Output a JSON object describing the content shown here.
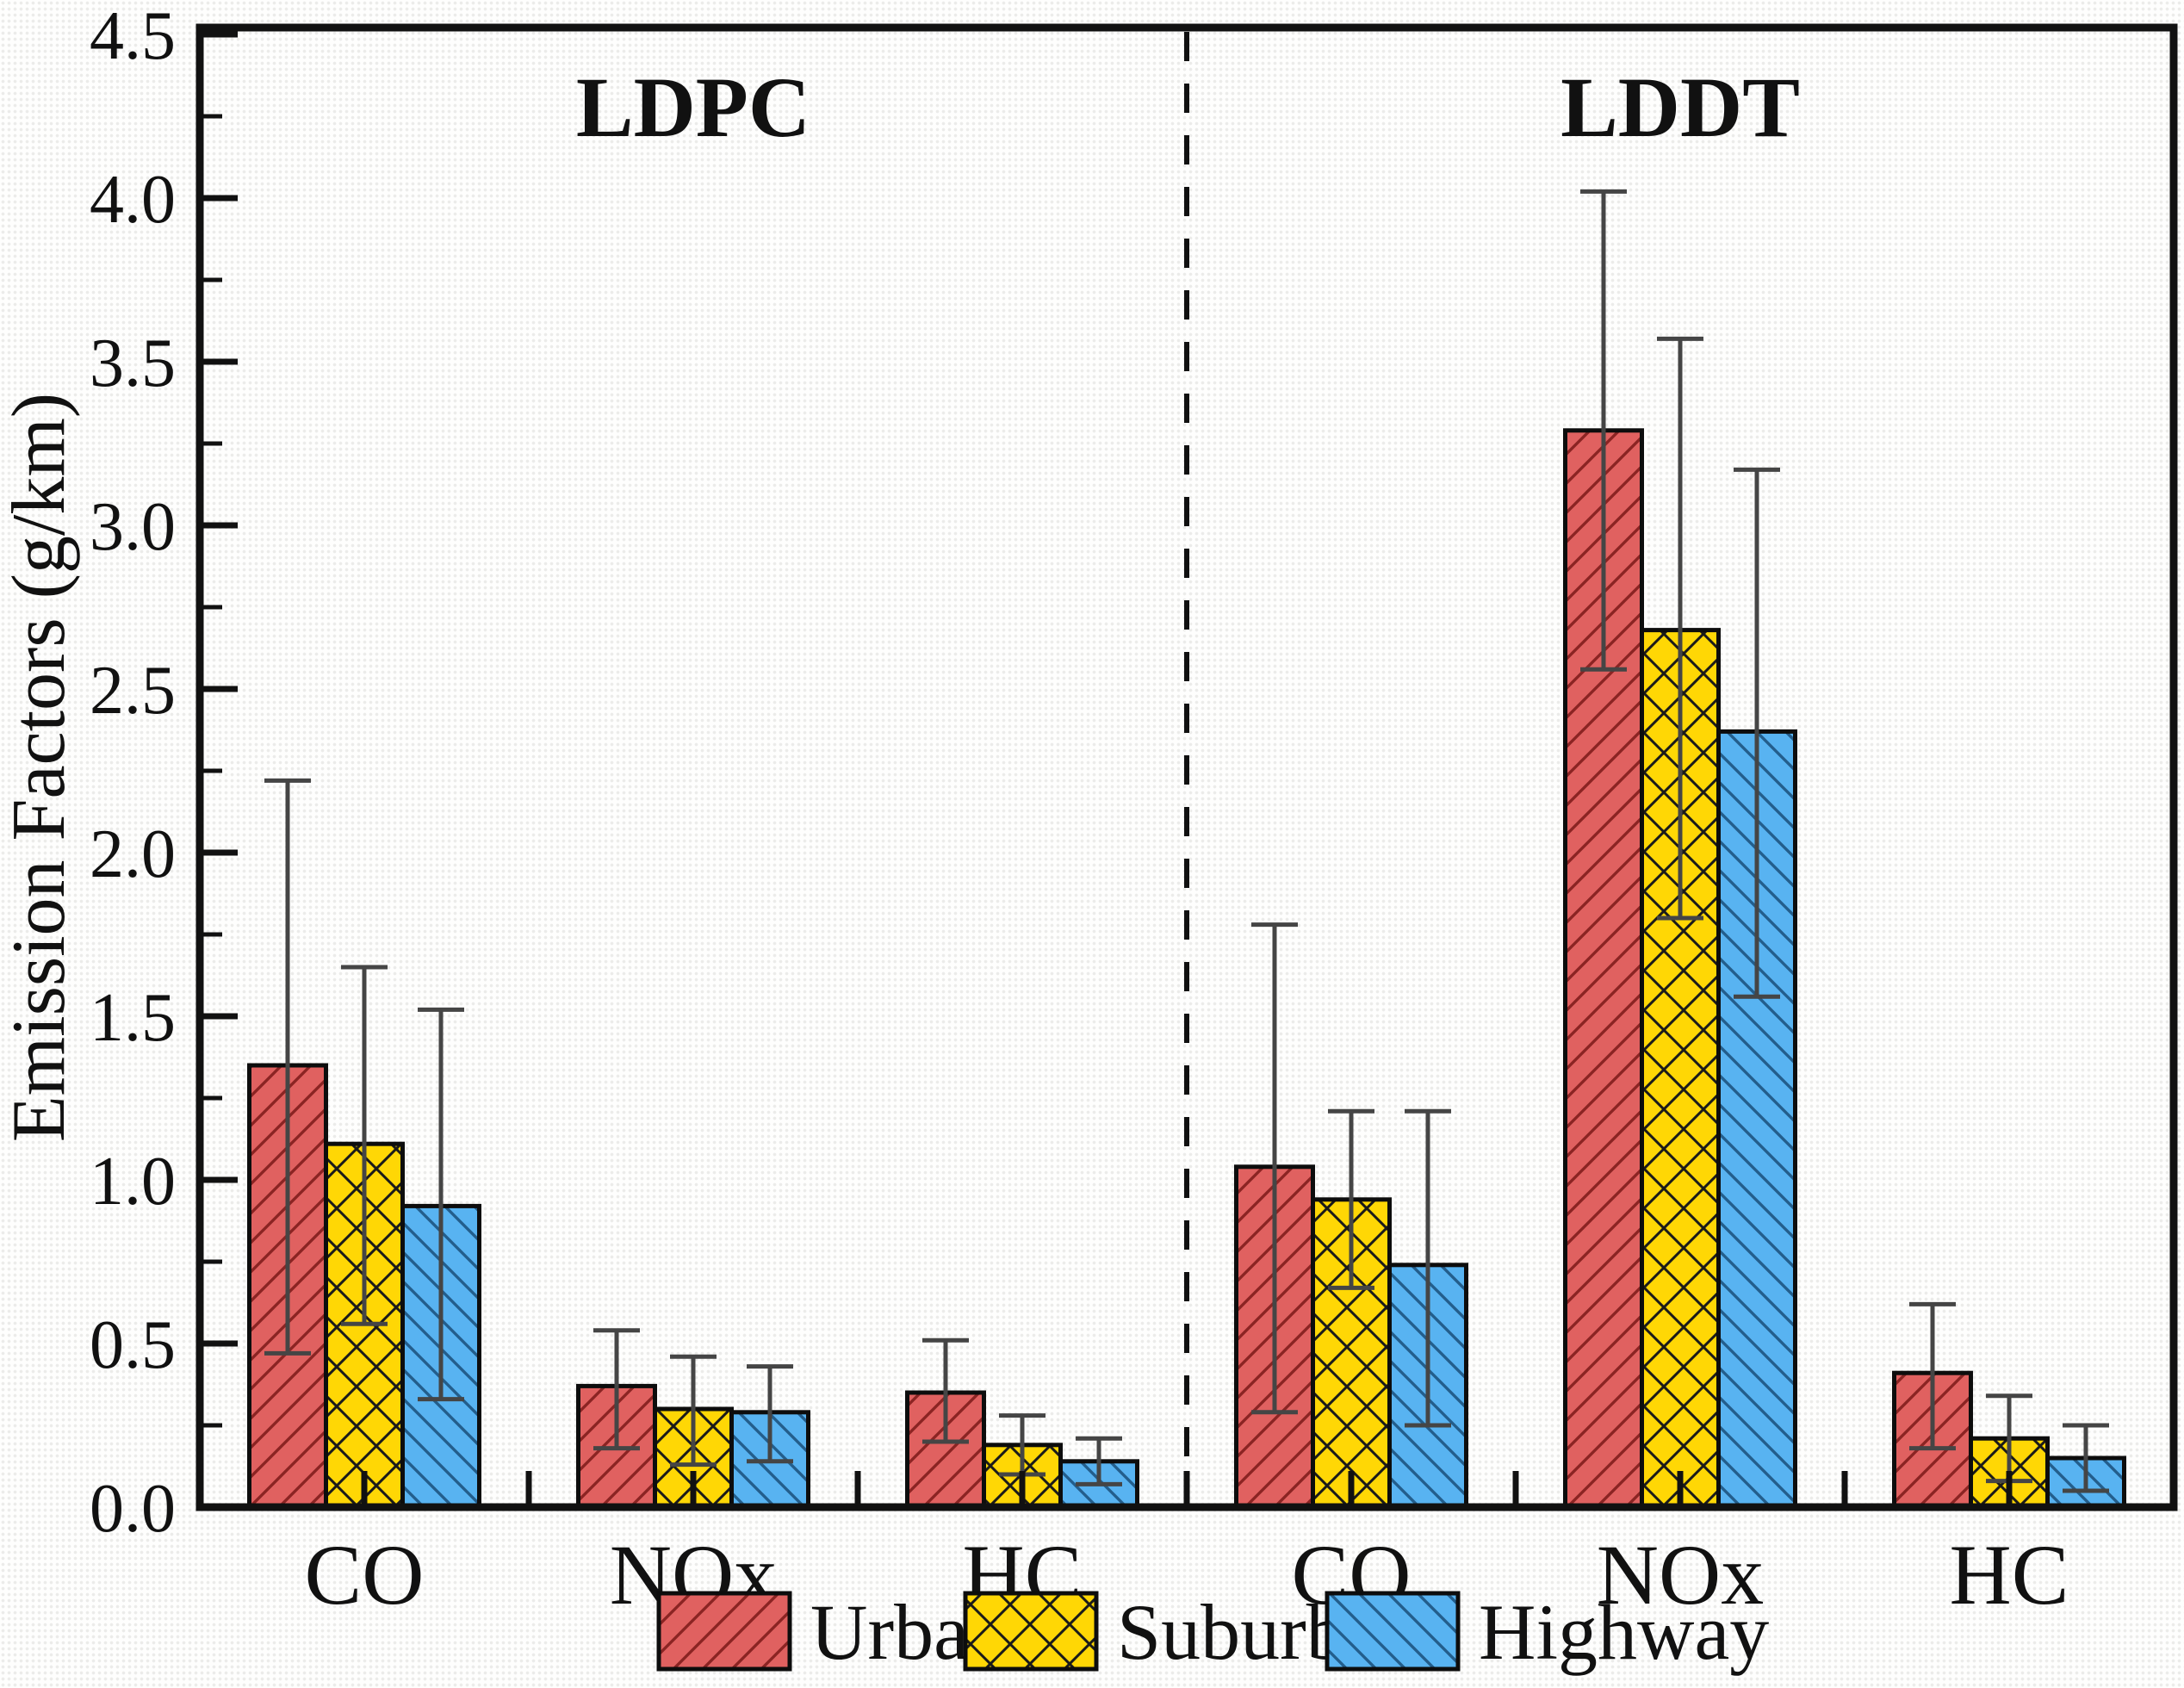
{
  "figure": {
    "panel_labels": [
      "LDPC",
      "LDDT"
    ],
    "background": "#fefefd",
    "frame_color": "#111111"
  },
  "y_axis": {
    "title": "Emission Factors  (g/km)",
    "tick_labels": [
      "0.0",
      "0.5",
      "1.0",
      "1.5",
      "2.0",
      "2.5",
      "3.0",
      "3.5",
      "4.0",
      "4.5"
    ]
  },
  "x_axis": {
    "categories": [
      "CO",
      "NOx",
      "HC",
      "CO",
      "NOx",
      "HC"
    ]
  },
  "legend": [
    {
      "label": "Urban",
      "color": "#e06160",
      "hatch": "forward-diagonal-icon",
      "hatch_color": "#8b2423"
    },
    {
      "label": "Suburban",
      "color": "#ffd705",
      "hatch": "crosshatch-icon",
      "hatch_color": "#1a1a1a"
    },
    {
      "label": "Highway",
      "color": "#58b3f1",
      "hatch": "backward-diagonal-icon",
      "hatch_color": "#235e8c"
    }
  ],
  "chart_data": {
    "type": "bar",
    "title": "",
    "xlabel": "",
    "ylabel": "Emission Factors  (g/km)",
    "ylim": [
      0,
      4.5
    ],
    "y_major_step": 0.5,
    "y_minor_step": 0.25,
    "grid": false,
    "legend_position": "bottom",
    "divider": "dashed vertical line between LDPC and LDDT halves",
    "error_bars": true,
    "panels": [
      {
        "label": "LDPC",
        "categories": [
          "CO",
          "NOx",
          "HC"
        ],
        "series": [
          {
            "name": "Urban",
            "values": [
              1.35,
              0.37,
              0.35
            ],
            "err_low": [
              0.47,
              0.18,
              0.2
            ],
            "err_high": [
              2.22,
              0.54,
              0.51
            ]
          },
          {
            "name": "Suburban",
            "values": [
              1.11,
              0.3,
              0.19
            ],
            "err_low": [
              0.56,
              0.13,
              0.1
            ],
            "err_high": [
              1.65,
              0.46,
              0.28
            ]
          },
          {
            "name": "Highway",
            "values": [
              0.92,
              0.29,
              0.14
            ],
            "err_low": [
              0.33,
              0.14,
              0.07
            ],
            "err_high": [
              1.52,
              0.43,
              0.21
            ]
          }
        ]
      },
      {
        "label": "LDDT",
        "categories": [
          "CO",
          "NOx",
          "HC"
        ],
        "series": [
          {
            "name": "Urban",
            "values": [
              1.04,
              3.29,
              0.41
            ],
            "err_low": [
              0.29,
              2.56,
              0.18
            ],
            "err_high": [
              1.78,
              4.02,
              0.62
            ]
          },
          {
            "name": "Suburban",
            "values": [
              0.94,
              2.68,
              0.21
            ],
            "err_low": [
              0.67,
              1.8,
              0.08
            ],
            "err_high": [
              1.21,
              3.57,
              0.34
            ]
          },
          {
            "name": "Highway",
            "values": [
              0.74,
              2.37,
              0.15
            ],
            "err_low": [
              0.25,
              1.56,
              0.05
            ],
            "err_high": [
              1.21,
              3.17,
              0.25
            ]
          }
        ]
      }
    ]
  }
}
